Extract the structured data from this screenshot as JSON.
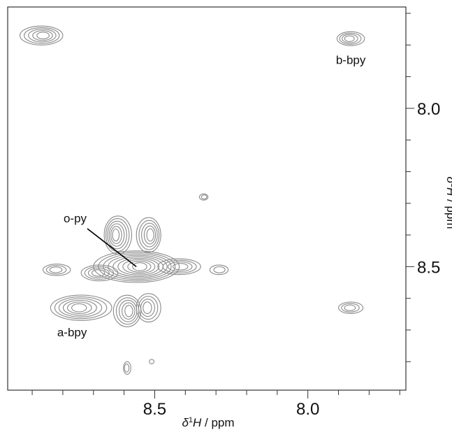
{
  "chart_data": {
    "type": "contour",
    "x_axis": {
      "label_symbol": "δ",
      "label_sup": "1",
      "label_nucleus": "H",
      "label_unit": " / ppm",
      "range": [
        8.98,
        7.68
      ],
      "reversed": true,
      "major_ticks": [
        8.5,
        8.0
      ],
      "tick_labels": [
        "8.5",
        "8.0"
      ],
      "minor_step": 0.1
    },
    "y_axis": {
      "label_symbol": "δ",
      "label_sup": "1",
      "label_nucleus": "H",
      "label_unit": " / ppm",
      "range": [
        7.68,
        8.89
      ],
      "reversed": true,
      "major_ticks": [
        8.0,
        8.5
      ],
      "tick_labels": [
        "8.0",
        "8.5"
      ],
      "minor_step": 0.1
    },
    "peaks": [
      {
        "label": "b-bpy",
        "x": 7.86,
        "y": 7.78,
        "rx": 0.045,
        "ry": 0.022,
        "levels": 4
      },
      {
        "label": "",
        "x": 8.87,
        "y": 7.77,
        "rx": 0.07,
        "ry": 0.03,
        "levels": 5
      },
      {
        "label": "",
        "x": 7.86,
        "y": 8.63,
        "rx": 0.04,
        "ry": 0.018,
        "levels": 3
      },
      {
        "label": "o-py",
        "x": 8.56,
        "y": 8.5,
        "rx": 0.14,
        "ry": 0.05,
        "levels": 9
      },
      {
        "label": "",
        "x": 8.62,
        "y": 8.4,
        "rx": 0.045,
        "ry": 0.06,
        "levels": 6
      },
      {
        "label": "",
        "x": 8.52,
        "y": 8.4,
        "rx": 0.04,
        "ry": 0.055,
        "levels": 5
      },
      {
        "label": "",
        "x": 8.68,
        "y": 8.52,
        "rx": 0.06,
        "ry": 0.025,
        "levels": 4
      },
      {
        "label": "",
        "x": 8.42,
        "y": 8.5,
        "rx": 0.07,
        "ry": 0.025,
        "levels": 4
      },
      {
        "label": "",
        "x": 8.82,
        "y": 8.51,
        "rx": 0.045,
        "ry": 0.018,
        "levels": 3
      },
      {
        "label": "",
        "x": 8.29,
        "y": 8.51,
        "rx": 0.03,
        "ry": 0.015,
        "levels": 2
      },
      {
        "label": "a-bpy",
        "x": 8.74,
        "y": 8.63,
        "rx": 0.1,
        "ry": 0.04,
        "levels": 6
      },
      {
        "label": "",
        "x": 8.59,
        "y": 8.64,
        "rx": 0.045,
        "ry": 0.05,
        "levels": 5
      },
      {
        "label": "",
        "x": 8.52,
        "y": 8.63,
        "rx": 0.04,
        "ry": 0.045,
        "levels": 4
      },
      {
        "label": "",
        "x": 8.34,
        "y": 8.28,
        "rx": 0.014,
        "ry": 0.01,
        "levels": 2
      },
      {
        "label": "",
        "x": 8.59,
        "y": 8.82,
        "rx": 0.012,
        "ry": 0.02,
        "levels": 2
      },
      {
        "label": "",
        "x": 8.51,
        "y": 8.8,
        "rx": 0.008,
        "ry": 0.007,
        "levels": 1
      }
    ],
    "annotations": [
      {
        "text": "o-py",
        "x": 8.76,
        "y": 8.36
      },
      {
        "text": "b-bpy",
        "x": 7.86,
        "y": 7.86
      },
      {
        "text": "a-bpy",
        "x": 8.77,
        "y": 8.72
      }
    ]
  }
}
